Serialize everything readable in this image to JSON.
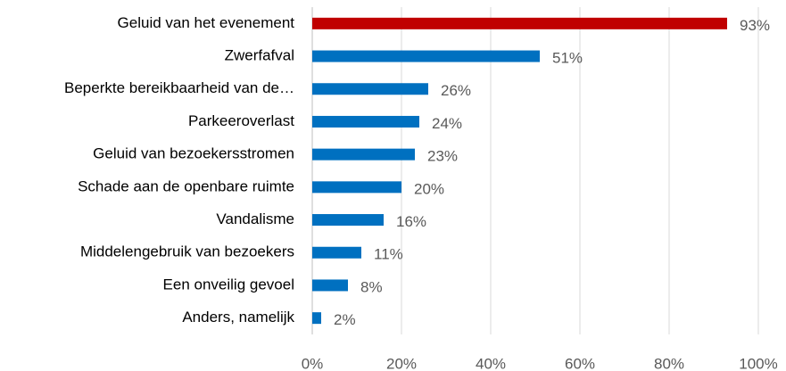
{
  "chart_data": {
    "type": "bar",
    "orientation": "horizontal",
    "categories": [
      "Geluid van het evenement",
      "Zwerfafval",
      "Beperkte bereikbaarheid van de…",
      "Parkeeroverlast",
      "Geluid van bezoekersstromen",
      "Schade aan de openbare ruimte",
      "Vandalisme",
      "Middelengebruik van bezoekers",
      "Een onveilig gevoel",
      "Anders, namelijk"
    ],
    "values": [
      93,
      51,
      26,
      24,
      23,
      20,
      16,
      11,
      8,
      2
    ],
    "value_labels": [
      "93%",
      "51%",
      "26%",
      "24%",
      "23%",
      "20%",
      "16%",
      "11%",
      "8%",
      "2%"
    ],
    "colors": [
      "#c00000",
      "#0070c0",
      "#0070c0",
      "#0070c0",
      "#0070c0",
      "#0070c0",
      "#0070c0",
      "#0070c0",
      "#0070c0",
      "#0070c0"
    ],
    "xlim": [
      0,
      100
    ],
    "xticks": [
      {
        "value": 0,
        "label": "0%"
      },
      {
        "value": 20,
        "label": "20%"
      },
      {
        "value": 40,
        "label": "40%"
      },
      {
        "value": 60,
        "label": "60%"
      },
      {
        "value": 80,
        "label": "80%"
      },
      {
        "value": 100,
        "label": "100%"
      }
    ],
    "grid": true
  }
}
